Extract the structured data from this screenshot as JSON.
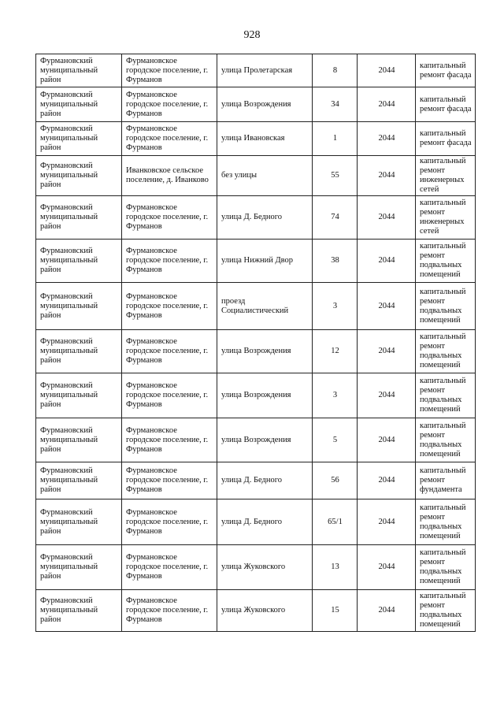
{
  "page_number": "928",
  "rows": [
    {
      "district": "Фурмановский муниципальный район",
      "settlement": "Фурмановское городское поселение, г. Фурманов",
      "street": "улица  Пролетарская",
      "house": "8",
      "year": "2044",
      "work": "капитальный ремонт фасада"
    },
    {
      "district": "Фурмановский муниципальный район",
      "settlement": "Фурмановское городское поселение, г. Фурманов",
      "street": "улица Возрождения",
      "house": "34",
      "year": "2044",
      "work": "капитальный ремонт фасада"
    },
    {
      "district": "Фурмановский муниципальный район",
      "settlement": "Фурмановское городское поселение, г. Фурманов",
      "street": "улица  Ивановская",
      "house": "1",
      "year": "2044",
      "work": "капитальный ремонт фасада"
    },
    {
      "district": "Фурмановский муниципальный район",
      "settlement": "Иванковское сельское поселение, д. Иванково",
      "street": "без улицы",
      "house": "55",
      "year": "2044",
      "work": "капитальный ремонт инженерных сетей"
    },
    {
      "district": "Фурмановский муниципальный район",
      "settlement": "Фурмановское городское поселение, г. Фурманов",
      "street": "улица Д. Бедного",
      "house": "74",
      "year": "2044",
      "work": "капитальный ремонт инженерных сетей"
    },
    {
      "district": "Фурмановский муниципальный район",
      "settlement": "Фурмановское городское поселение, г. Фурманов",
      "street": "улица Нижний Двор",
      "house": "38",
      "year": "2044",
      "work": "капитальный ремонт подвальных помещений"
    },
    {
      "district": "Фурмановский муниципальный район",
      "settlement": "Фурмановское городское поселение, г. Фурманов",
      "street": "проезд Социалистический",
      "house": "3",
      "year": "2044",
      "work": "капитальный ремонт подвальных помещений"
    },
    {
      "district": "Фурмановский муниципальный район",
      "settlement": "Фурмановское городское поселение, г. Фурманов",
      "street": "улица Возрождения",
      "house": "12",
      "year": "2044",
      "work": "капитальный ремонт подвальных помещений"
    },
    {
      "district": "Фурмановский муниципальный район",
      "settlement": "Фурмановское городское поселение, г. Фурманов",
      "street": "улица Возрождения",
      "house": "3",
      "year": "2044",
      "work": "капитальный ремонт подвальных помещений"
    },
    {
      "district": "Фурмановский муниципальный район",
      "settlement": "Фурмановское городское поселение, г. Фурманов",
      "street": "улица Возрождения",
      "house": "5",
      "year": "2044",
      "work": "капитальный ремонт подвальных помещений"
    },
    {
      "district": "Фурмановский муниципальный район",
      "settlement": "Фурмановское городское поселение, г. Фурманов",
      "street": "улица Д. Бедного",
      "house": "56",
      "year": "2044",
      "work": "капитальный ремонт фундамента"
    },
    {
      "district": "Фурмановский муниципальный район",
      "settlement": "Фурмановское городское поселение, г. Фурманов",
      "street": "улица Д. Бедного",
      "house": "65/1",
      "year": "2044",
      "work": "капитальный ремонт подвальных помещений"
    },
    {
      "district": "Фурмановский муниципальный район",
      "settlement": "Фурмановское городское поселение, г. Фурманов",
      "street": "улица Жуковского",
      "house": "13",
      "year": "2044",
      "work": "капитальный ремонт подвальных помещений"
    },
    {
      "district": "Фурмановский муниципальный район",
      "settlement": "Фурмановское городское поселение, г. Фурманов",
      "street": "улица Жуковского",
      "house": "15",
      "year": "2044",
      "work": "капитальный ремонт подвальных помещений"
    }
  ]
}
